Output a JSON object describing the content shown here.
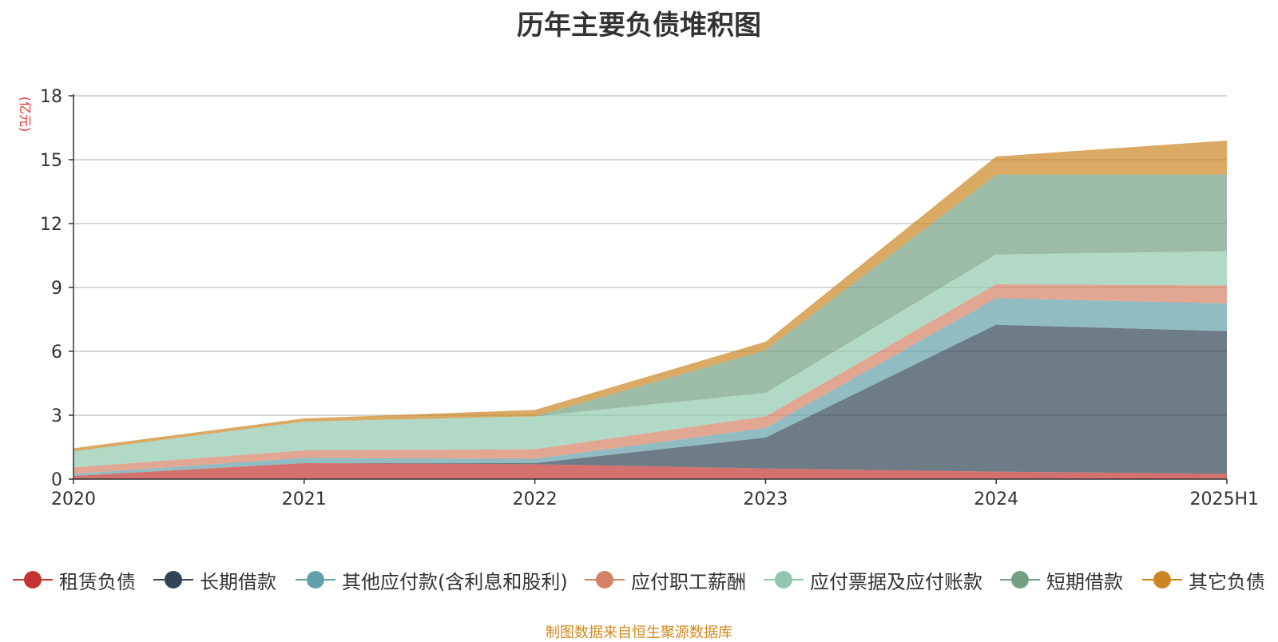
{
  "chart_data": {
    "type": "area",
    "title": "历年主要负债堆积图",
    "ylabel": "(亿元)",
    "xlabel": "",
    "categories": [
      "2020",
      "2021",
      "2022",
      "2023",
      "2024",
      "2025H1"
    ],
    "ylim": [
      0,
      18
    ],
    "yticks": [
      0,
      3,
      6,
      9,
      12,
      15,
      18
    ],
    "grid": true,
    "stacked": true,
    "legend_position": "bottom",
    "series": [
      {
        "name": "租赁负债",
        "values": [
          0.15,
          0.75,
          0.7,
          0.5,
          0.35,
          0.25
        ],
        "color": "#c23531"
      },
      {
        "name": "长期借款",
        "values": [
          0.0,
          0.0,
          0.05,
          1.45,
          6.9,
          6.7
        ],
        "color": "#2f4554"
      },
      {
        "name": "其他应付款(含利息和股利)",
        "values": [
          0.1,
          0.25,
          0.2,
          0.45,
          1.25,
          1.3
        ],
        "color": "#61a0a8"
      },
      {
        "name": "应付职工薪酬",
        "values": [
          0.3,
          0.35,
          0.45,
          0.55,
          0.65,
          0.85
        ],
        "color": "#d48265"
      },
      {
        "name": "应付票据及应付账款",
        "values": [
          0.75,
          1.35,
          1.55,
          1.1,
          1.4,
          1.6
        ],
        "color": "#91c7ae"
      },
      {
        "name": "短期借款",
        "values": [
          0.0,
          0.0,
          0.0,
          2.0,
          3.75,
          3.6
        ],
        "color": "#749f83"
      },
      {
        "name": "其它负债",
        "values": [
          0.15,
          0.15,
          0.3,
          0.4,
          0.85,
          1.6
        ],
        "color": "#ca8622"
      }
    ]
  },
  "source_note": "制图数据来自恒生聚源数据库"
}
